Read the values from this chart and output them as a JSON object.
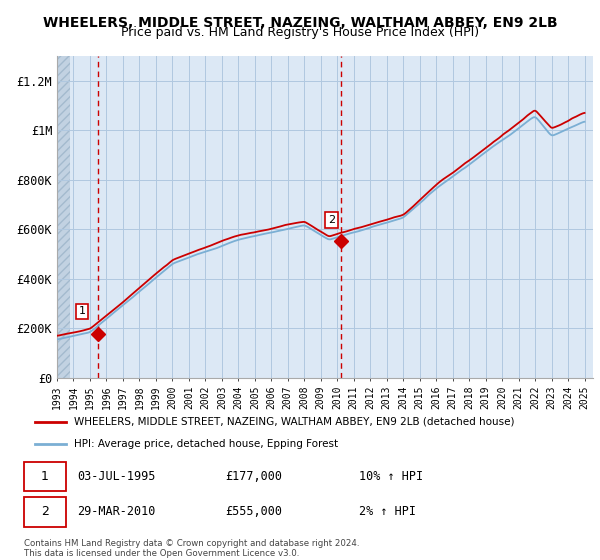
{
  "title": "WHEELERS, MIDDLE STREET, NAZEING, WALTHAM ABBEY, EN9 2LB",
  "subtitle": "Price paid vs. HM Land Registry's House Price Index (HPI)",
  "legend_line1": "WHEELERS, MIDDLE STREET, NAZEING, WALTHAM ABBEY, EN9 2LB (detached house)",
  "legend_line2": "HPI: Average price, detached house, Epping Forest",
  "annotation1_date": "03-JUL-1995",
  "annotation1_price": "£177,000",
  "annotation1_hpi": "10% ↑ HPI",
  "annotation2_date": "29-MAR-2010",
  "annotation2_price": "£555,000",
  "annotation2_hpi": "2% ↑ HPI",
  "footer": "Contains HM Land Registry data © Crown copyright and database right 2024.\nThis data is licensed under the Open Government Licence v3.0.",
  "sale1_x": 1995.5,
  "sale1_y": 177000,
  "sale2_x": 2010.25,
  "sale2_y": 555000,
  "hpi_line_color": "#7bafd4",
  "price_line_color": "#cc0000",
  "sale_dot_color": "#cc0000",
  "vline_color": "#cc0000",
  "plot_bg_color": "#dce8f5",
  "hatch_start_color": "#c8d8e8",
  "grid_color": "#b0c8e0",
  "ylim": [
    0,
    1300000
  ],
  "yticks": [
    0,
    200000,
    400000,
    600000,
    800000,
    1000000,
    1200000
  ],
  "ytick_labels": [
    "£0",
    "£200K",
    "£400K",
    "£600K",
    "£800K",
    "£1M",
    "£1.2M"
  ],
  "xmin": 1993,
  "xmax": 2025.5
}
